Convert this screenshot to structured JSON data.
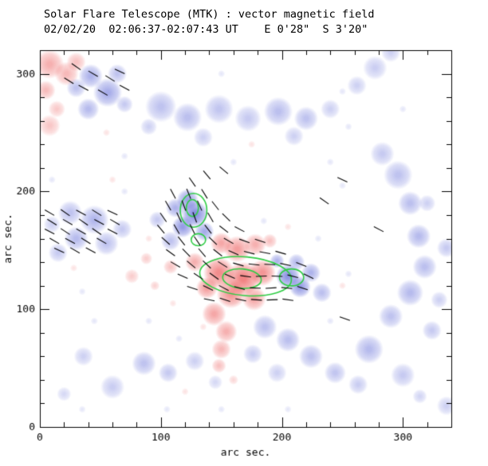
{
  "chart_data": {
    "type": "heatmap",
    "title": "Solar Flare Telescope (MTK) : vector magnetic field",
    "subtitle": "02/02/20  02:06:37-02:07:43 UT    E 0'28\"  S 3'20\"",
    "xlabel": "arc sec.",
    "ylabel": "arc sec.",
    "x_range": [
      0,
      340
    ],
    "y_range": [
      0,
      320
    ],
    "x_ticks": [
      0,
      100,
      200,
      300
    ],
    "y_ticks": [
      0,
      100,
      200,
      300
    ],
    "minor_tick_step": 20,
    "vector_length": 9,
    "speckle_radius": 3,
    "speckle_alpha": 0.16,
    "colors": {
      "negative_blue_rgb": "95,105,215",
      "positive_red_rgb": "235,80,80",
      "contour_green": "#2ecc44",
      "vector_black": "#000000",
      "axis_black": "#000000"
    },
    "blue_blobs": [
      [
        42,
        298,
        10,
        0.5
      ],
      [
        56,
        284,
        12,
        0.55
      ],
      [
        40,
        270,
        9,
        0.45
      ],
      [
        64,
        300,
        8,
        0.4
      ],
      [
        30,
        288,
        8,
        0.4
      ],
      [
        70,
        274,
        7,
        0.35
      ],
      [
        100,
        272,
        13,
        0.4
      ],
      [
        122,
        263,
        12,
        0.42
      ],
      [
        148,
        270,
        12,
        0.38
      ],
      [
        172,
        262,
        11,
        0.35
      ],
      [
        197,
        268,
        12,
        0.42
      ],
      [
        220,
        262,
        10,
        0.4
      ],
      [
        240,
        270,
        8,
        0.3
      ],
      [
        135,
        246,
        8,
        0.3
      ],
      [
        210,
        247,
        8,
        0.3
      ],
      [
        90,
        255,
        7,
        0.3
      ],
      [
        277,
        305,
        10,
        0.32
      ],
      [
        262,
        290,
        8,
        0.3
      ],
      [
        290,
        318,
        8,
        0.3
      ],
      [
        283,
        232,
        10,
        0.35
      ],
      [
        296,
        214,
        12,
        0.4
      ],
      [
        306,
        190,
        10,
        0.42
      ],
      [
        313,
        162,
        10,
        0.45
      ],
      [
        318,
        136,
        10,
        0.42
      ],
      [
        306,
        114,
        11,
        0.45
      ],
      [
        290,
        94,
        10,
        0.4
      ],
      [
        272,
        66,
        12,
        0.45
      ],
      [
        300,
        44,
        10,
        0.35
      ],
      [
        324,
        82,
        8,
        0.35
      ],
      [
        336,
        152,
        8,
        0.35
      ],
      [
        330,
        108,
        7,
        0.3
      ],
      [
        320,
        190,
        7,
        0.3
      ],
      [
        25,
        182,
        10,
        0.4
      ],
      [
        45,
        176,
        12,
        0.48
      ],
      [
        30,
        160,
        10,
        0.45
      ],
      [
        55,
        156,
        10,
        0.4
      ],
      [
        15,
        148,
        8,
        0.35
      ],
      [
        68,
        168,
        8,
        0.35
      ],
      [
        10,
        172,
        7,
        0.3
      ],
      [
        122,
        193,
        9,
        0.6
      ],
      [
        128,
        181,
        11,
        0.75
      ],
      [
        118,
        170,
        9,
        0.65
      ],
      [
        136,
        166,
        8,
        0.55
      ],
      [
        108,
        158,
        8,
        0.4
      ],
      [
        97,
        176,
        7,
        0.35
      ],
      [
        112,
        186,
        8,
        0.5
      ],
      [
        205,
        128,
        10,
        0.7
      ],
      [
        215,
        119,
        9,
        0.65
      ],
      [
        224,
        131,
        8,
        0.5
      ],
      [
        196,
        141,
        6,
        0.5
      ],
      [
        233,
        114,
        8,
        0.42
      ],
      [
        212,
        140,
        7,
        0.45
      ],
      [
        186,
        85,
        10,
        0.4
      ],
      [
        205,
        74,
        10,
        0.42
      ],
      [
        224,
        60,
        10,
        0.4
      ],
      [
        244,
        46,
        9,
        0.38
      ],
      [
        263,
        36,
        8,
        0.33
      ],
      [
        176,
        62,
        8,
        0.33
      ],
      [
        196,
        46,
        8,
        0.3
      ],
      [
        60,
        34,
        10,
        0.33
      ],
      [
        86,
        54,
        10,
        0.4
      ],
      [
        106,
        46,
        8,
        0.35
      ],
      [
        128,
        56,
        8,
        0.3
      ],
      [
        36,
        60,
        8,
        0.3
      ],
      [
        20,
        28,
        6,
        0.25
      ],
      [
        336,
        18,
        8,
        0.3
      ],
      [
        314,
        26,
        6,
        0.28
      ],
      [
        145,
        38,
        6,
        0.25
      ]
    ],
    "red_blobs": [
      [
        8,
        308,
        12,
        0.45
      ],
      [
        22,
        300,
        10,
        0.4
      ],
      [
        5,
        286,
        8,
        0.38
      ],
      [
        14,
        270,
        7,
        0.3
      ],
      [
        8,
        256,
        9,
        0.32
      ],
      [
        30,
        310,
        8,
        0.35
      ],
      [
        150,
        156,
        9,
        0.5
      ],
      [
        163,
        151,
        11,
        0.55
      ],
      [
        178,
        155,
        9,
        0.45
      ],
      [
        190,
        158,
        6,
        0.35
      ],
      [
        148,
        131,
        13,
        0.65
      ],
      [
        168,
        126,
        14,
        0.7
      ],
      [
        184,
        131,
        11,
        0.6
      ],
      [
        158,
        113,
        12,
        0.6
      ],
      [
        177,
        109,
        10,
        0.5
      ],
      [
        144,
        96,
        10,
        0.5
      ],
      [
        154,
        81,
        9,
        0.45
      ],
      [
        150,
        66,
        8,
        0.4
      ],
      [
        148,
        52,
        6,
        0.35
      ],
      [
        138,
        118,
        9,
        0.55
      ],
      [
        128,
        140,
        8,
        0.45
      ],
      [
        108,
        136,
        6,
        0.33
      ],
      [
        76,
        128,
        6,
        0.28
      ],
      [
        88,
        143,
        5,
        0.28
      ],
      [
        95,
        120,
        4,
        0.25
      ],
      [
        160,
        40,
        4,
        0.22
      ]
    ],
    "speckles_blue": [
      [
        150,
        300
      ],
      [
        250,
        285
      ],
      [
        70,
        230
      ],
      [
        160,
        225
      ],
      [
        255,
        255
      ],
      [
        35,
        115
      ],
      [
        230,
        160
      ],
      [
        255,
        130
      ],
      [
        185,
        175
      ],
      [
        90,
        90
      ],
      [
        115,
        75
      ],
      [
        240,
        90
      ],
      [
        45,
        90
      ],
      [
        250,
        205
      ],
      [
        150,
        15
      ],
      [
        35,
        15
      ],
      [
        105,
        15
      ],
      [
        205,
        15
      ],
      [
        300,
        270
      ],
      [
        10,
        210
      ],
      [
        70,
        200
      ],
      [
        240,
        225
      ]
    ],
    "speckles_red": [
      [
        60,
        210
      ],
      [
        175,
        240
      ],
      [
        110,
        105
      ],
      [
        135,
        85
      ],
      [
        250,
        120
      ],
      [
        28,
        135
      ],
      [
        90,
        160
      ],
      [
        120,
        30
      ],
      [
        205,
        170
      ],
      [
        55,
        250
      ]
    ],
    "contours": [
      [
        127,
        184,
        11,
        14,
        0
      ],
      [
        126,
        186,
        5,
        7,
        0
      ],
      [
        170,
        128,
        38,
        16,
        -5
      ],
      [
        167,
        126,
        16,
        8,
        -5
      ],
      [
        208,
        127,
        10,
        7,
        0
      ],
      [
        131,
        159,
        6,
        5,
        0
      ]
    ],
    "vectors": [
      [
        8,
        182,
        -30
      ],
      [
        21,
        182,
        -35
      ],
      [
        34,
        182,
        -28
      ],
      [
        47,
        182,
        -32
      ],
      [
        60,
        182,
        -25
      ],
      [
        10,
        174,
        -32
      ],
      [
        23,
        174,
        -30
      ],
      [
        36,
        174,
        -35
      ],
      [
        49,
        174,
        -28
      ],
      [
        62,
        174,
        -30
      ],
      [
        8,
        166,
        -28
      ],
      [
        21,
        166,
        -33
      ],
      [
        34,
        166,
        -30
      ],
      [
        47,
        166,
        -35
      ],
      [
        60,
        166,
        -27
      ],
      [
        12,
        158,
        -30
      ],
      [
        25,
        158,
        -28
      ],
      [
        38,
        158,
        -32
      ],
      [
        51,
        158,
        -30
      ],
      [
        16,
        150,
        -25
      ],
      [
        29,
        150,
        -30
      ],
      [
        42,
        150,
        -28
      ],
      [
        30,
        306,
        -35
      ],
      [
        44,
        300,
        -30
      ],
      [
        58,
        296,
        -32
      ],
      [
        36,
        288,
        -28
      ],
      [
        52,
        284,
        -30
      ],
      [
        66,
        302,
        -25
      ],
      [
        24,
        294,
        -32
      ],
      [
        70,
        288,
        -28
      ],
      [
        126,
        208,
        -55
      ],
      [
        138,
        214,
        -50
      ],
      [
        152,
        218,
        -40
      ],
      [
        110,
        198,
        -62
      ],
      [
        123,
        198,
        -68
      ],
      [
        136,
        198,
        -58
      ],
      [
        106,
        188,
        -60
      ],
      [
        119,
        188,
        -70
      ],
      [
        132,
        188,
        -66
      ],
      [
        145,
        188,
        -52
      ],
      [
        102,
        178,
        -55
      ],
      [
        115,
        178,
        -65
      ],
      [
        128,
        178,
        -70
      ],
      [
        141,
        178,
        -60
      ],
      [
        154,
        178,
        -45
      ],
      [
        100,
        168,
        -50
      ],
      [
        113,
        168,
        -60
      ],
      [
        126,
        168,
        -64
      ],
      [
        139,
        168,
        -52
      ],
      [
        152,
        168,
        -38
      ],
      [
        165,
        168,
        -28
      ],
      [
        104,
        158,
        -42
      ],
      [
        117,
        158,
        -52
      ],
      [
        130,
        158,
        -56
      ],
      [
        143,
        158,
        -44
      ],
      [
        156,
        158,
        -30
      ],
      [
        169,
        158,
        -20
      ],
      [
        182,
        158,
        -18
      ],
      [
        108,
        148,
        -36
      ],
      [
        121,
        148,
        -46
      ],
      [
        134,
        148,
        -50
      ],
      [
        147,
        148,
        -38
      ],
      [
        160,
        148,
        -24
      ],
      [
        173,
        148,
        -14
      ],
      [
        186,
        148,
        -10
      ],
      [
        199,
        148,
        -16
      ],
      [
        112,
        138,
        -30
      ],
      [
        125,
        138,
        -40
      ],
      [
        138,
        138,
        -44
      ],
      [
        151,
        138,
        -32
      ],
      [
        164,
        138,
        -16
      ],
      [
        177,
        138,
        -6
      ],
      [
        190,
        138,
        -2
      ],
      [
        203,
        138,
        -12
      ],
      [
        216,
        138,
        -22
      ],
      [
        118,
        128,
        -24
      ],
      [
        131,
        128,
        -34
      ],
      [
        144,
        128,
        -36
      ],
      [
        157,
        128,
        -24
      ],
      [
        170,
        128,
        -8
      ],
      [
        183,
        128,
        2
      ],
      [
        196,
        128,
        -2
      ],
      [
        209,
        128,
        -14
      ],
      [
        222,
        128,
        -26
      ],
      [
        126,
        118,
        -18
      ],
      [
        139,
        118,
        -26
      ],
      [
        152,
        118,
        -28
      ],
      [
        165,
        118,
        -16
      ],
      [
        178,
        118,
        -2
      ],
      [
        191,
        118,
        4
      ],
      [
        204,
        118,
        -6
      ],
      [
        217,
        118,
        -18
      ],
      [
        140,
        108,
        -12
      ],
      [
        153,
        108,
        -18
      ],
      [
        166,
        108,
        -12
      ],
      [
        179,
        108,
        -4
      ],
      [
        192,
        108,
        2
      ],
      [
        205,
        108,
        -8
      ],
      [
        252,
        92,
        -20
      ],
      [
        280,
        168,
        -28
      ],
      [
        250,
        210,
        -25
      ],
      [
        235,
        192,
        -35
      ]
    ]
  }
}
